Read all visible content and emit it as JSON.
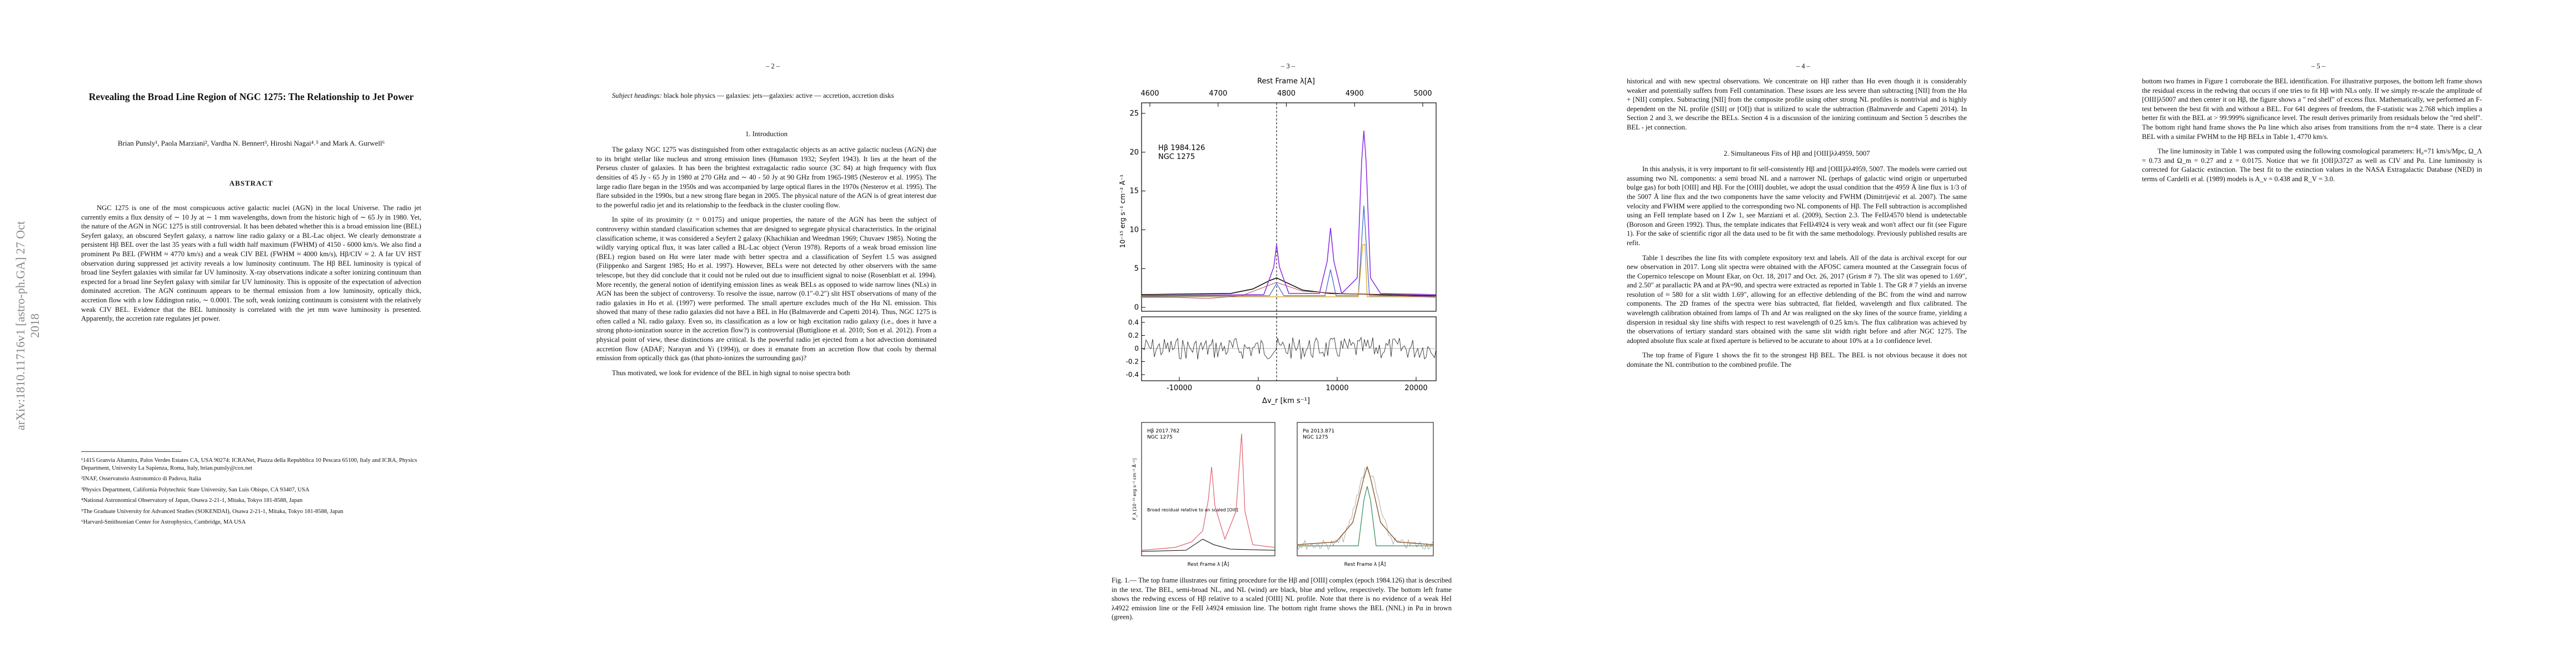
{
  "side_stamp": "arXiv:1810.11716v1  [astro-ph.GA]  27 Oct 2018",
  "page1": {
    "title": "Revealing the Broad Line Region of NGC 1275: The Relationship to Jet Power",
    "authors": "Brian Punsly¹, Paola Marziani², Vardha N. Bennert³, Hiroshi Nagai⁴˒⁵ and Mark A. Gurwell⁶",
    "abstract_heading": "ABSTRACT",
    "abstract": "NGC 1275 is one of the most conspicuous active galactic nuclei (AGN) in the local Universe. The radio jet currently emits a flux density of ∼ 10 Jy at ∼ 1 mm wavelengths, down from the historic high of ∼ 65 Jy in 1980. Yet, the nature of the AGN in NGC 1275 is still controversial. It has been debated whether this is a broad emission line (BEL) Seyfert galaxy, an obscured Seyfert galaxy, a narrow line radio galaxy or a BL-Lac object. We clearly demonstrate a persistent Hβ BEL over the last 35 years with a full width half maximum (FWHM) of 4150 - 6000 km/s. We also find a prominent Pα BEL (FWHM ≈ 4770 km/s) and a weak CIV BEL (FWHM ≈ 4000 km/s), Hβ/CIV ≈ 2. A far UV HST observation during suppressed jet activity reveals a low luminosity continuum. The Hβ BEL luminosity is typical of broad line Seyfert galaxies with similar far UV luminosity. X-ray observations indicate a softer ionizing continuum than expected for a broad line Seyfert galaxy with similar far UV luminosity. This is opposite of the expectation of advection dominated accretion. The AGN continuum appears to be thermal emission from a low luminosity, optically thick, accretion flow with a low Eddington ratio, ∼ 0.0001. The soft, weak ionizing continuum is consistent with the relatively weak CIV BEL. Evidence that the BEL luminosity is correlated with the jet mm wave luminosity is presented. Apparently, the accretion rate regulates jet power.",
    "footnotes": [
      "¹1415 Granvia Altamira, Palos Verdes Estates CA, USA 90274: ICRANet, Piazza della Repubblica 10 Pescara 65100, Italy and ICRA, Physics Department, University La Sapienza, Roma, Italy, brian.punsly@cox.net",
      "²INAF, Osservatorio Astronomico di Padova, Italia",
      "³Physics Department, California Polytechnic State University, San Luis Obispo, CA 93407, USA",
      "⁴National Astronomical Observatory of Japan, Osawa 2-21-1, Mitaka, Tokyo 181-8588, Japan",
      "⁵The Graduate University for Advanced Studies (SOKENDAI), Osawa 2-21-1, Mitaka, Tokyo 181-8588, Japan",
      "⁶Harvard-Smithsonian Center for Astrophysics, Cambridge, MA USA"
    ]
  },
  "page2": {
    "page_number": "– 2 –",
    "subject_headings_label": "Subject headings:",
    "subject_headings": "black hole physics — galaxies: jets—galaxies: active — accretion, accretion disks",
    "section_heading": "1.   Introduction",
    "paragraphs": [
      "The galaxy NGC 1275 was distinguished from other extragalactic objects as an active galactic nucleus (AGN) due to its bright stellar like nucleus and strong emission lines (Humason 1932; Seyfert 1943). It lies at the heart of the Perseus cluster of galaxies. It has been the brightest extragalactic radio source (3C 84) at high frequency with flux densities of 45 Jy - 65 Jy in 1980 at 270 GHz and ∼ 40 - 50 Jy at 90 GHz from 1965-1985 (Nesterov et al. 1995). The large radio flare began in the 1950s and was accompanied by large optical flares in the 1970s (Nesterov et al. 1995). The flare subsided in the 1990s, but a new strong flare began in 2005. The physical nature of the AGN is of great interest due to the powerful radio jet and its relationship to the feedback in the cluster cooling flow.",
      "In spite of its proximity (z = 0.0175) and unique properties, the nature of the AGN has been the subject of controversy within standard classification schemes that are designed to segregate physical characteristics. In the original classification scheme, it was considered a Seyfert 2 galaxy (Khachikian and Weedman 1969; Chuvaev 1985). Noting the wildly varying optical flux, it was later called a BL-Lac object (Veron 1978). Reports of a weak broad emission line (BEL) region based on Hα were later made with better spectra and a classification of Seyfert 1.5 was assigned (Filippenko and Sargent 1985; Ho et al. 1997). However, BELs were not detected by other observers with the same telescope, but they did conclude that it could not be ruled out due to insufficient signal to noise (Rosenblatt et al. 1994). More recently, the general notion of identifying emission lines as weak BELs as opposed to wide narrow lines (NLs) in AGN has been the subject of controversy. To resolve the issue, narrow (0.1″-0.2″) slit HST observations of many of the radio galaxies in Ho et al. (1997) were performed. The small aperture excludes much of the Hα NL emission. This showed that many of these radio galaxies did not have a BEL in Hα (Balmaverde and Capetti 2014). Thus, NGC 1275 is often called a NL radio galaxy. Even so, its classification as a low or high excitation radio galaxy (i.e., does it have a strong photo-ionization source in the accretion flow?) is controversial (Buttiglione et al. 2010; Son et al. 2012). From a physical point of view, these distinctions are critical. Is the powerful radio jet ejected from a hot advection dominated accretion flow (ADAF; Narayan and Yi (1994)), or does it emanate from an accretion flow that cools by thermal emission from optically thick gas (that photo-ionizes the surrounding gas)?",
      "Thus motivated, we look for evidence of the BEL in high signal to noise spectra both"
    ]
  },
  "page3": {
    "page_number": "– 3 –",
    "figure": {
      "top_axis_label": "Rest Frame λ[Å]",
      "top_ticks": [
        4600,
        4700,
        4800,
        4900,
        5000
      ],
      "y_label": "10⁻¹⁵ erg s⁻¹ cm⁻² Å⁻¹",
      "y_ticks": [
        25,
        20,
        15,
        10,
        5,
        0
      ],
      "residual_ticks": [
        0.4,
        0.2,
        0,
        -0.2,
        -0.4
      ],
      "x_ticks": [
        -10000,
        0,
        10000,
        20000
      ],
      "x_label": "Δv_r  [km s⁻¹]",
      "annotation_line1": "Hβ 1984.126",
      "annotation_line2": "NGC 1275",
      "left_panel_label1": "Hβ 2017.762",
      "left_panel_label2": "NGC 1275",
      "left_panel_note": "Broad residual relative to an scaled [OIII]",
      "left_panel_x_label": "Rest Frame λ [Å]",
      "left_panel_y_label": "F_λ [10⁻¹⁵ erg s⁻¹ cm⁻² Å⁻¹]",
      "right_panel_label1": "Pα 2013.871",
      "right_panel_label2": "NGC 1275",
      "right_panel_x_label": "Rest Frame λ [Å]"
    },
    "caption": "Fig. 1.— The top frame illustrates our fitting procedure for the Hβ and [OIII] complex (epoch 1984.126) that is described in the text. The BEL, semi-broad NL, and NL (wind) are black, blue and yellow, respectively. The bottom left frame shows the redwing excess of Hβ relative to a scaled [OIII] NL profile. Note that there is no evidence of a weak HeI λ4922 emission line or the FeII λ4924 emission line. The bottom right frame shows the BEL (NNL) in Pα in brown (green)."
  },
  "page4": {
    "page_number": "– 4 –",
    "paragraph_continued": "historical and with new spectral observations. We concentrate on Hβ rather than Hα even though it is considerably weaker and potentially suffers from FeII contamination. These issues are less severe than subtracting [NII] from the Hα + [NII] complex. Subtracting [NII] from the composite profile using other strong NL profiles is nontrivial and is highly dependent on the NL profile ([SII] or [OI]) that is utilized to scale the subtraction (Balmaverde and Capetti 2014). In Section 2 and 3, we describe the BELs. Section 4 is a discussion of the ionizing continuum and Section 5 describes the BEL - jet connection.",
    "section_heading": "2.   Simultaneous Fits of Hβ and [OIII]λλ4959, 5007",
    "paragraphs": [
      "In this analysis, it is very important to fit self-consistently Hβ and [OIII]λλ4959, 5007. The models were carried out assuming two NL components: a semi broad NL and a narrower NL (perhaps of galactic wind origin or unperturbed bulge gas) for both [OIII] and Hβ. For the [OIII] doublet, we adopt the usual condition that the 4959 Å line flux is 1/3 of the 5007 Å line flux and the two components have the same velocity and FWHM (Dimitrijević et al. 2007). The same velocity and FWHM were applied to the corresponding two NL components of Hβ. The FeII subtraction is accomplished using an FeII template based on I Zw 1, see Marziani et al. (2009), Section 2.3. The FeIIλ4570 blend is undetectable (Boroson and Green 1992). Thus, the template indicates that FeIIλ4924 is very weak and won't affect our fit (see Figure 1). For the sake of scientific rigor all the data used to be fit with the same methodology. Previously published results are refit.",
      "Table 1 describes the line fits with complete expository text and labels. All of the data is archival except for our new observation in 2017. Long slit spectra were obtained with the AFOSC camera mounted at the Cassegrain focus of the Copernico telescope on Mount Ekar, on Oct. 18, 2017 and Oct. 26, 2017 (Grism # 7). The slit was opened to 1.69″, and 2.50″ at parallactic PA and at PA=90, and spectra were extracted as reported in Table 1. The GR # 7 yields an inverse resolution of ≈ 580 for a slit width 1.69″, allowing for an effective deblending of the BC from the wind and narrow components. The 2D frames of the spectra were bias subtracted, flat fielded, wavelength and flux calibrated. The wavelength calibration obtained from lamps of Th and Ar was realigned on the sky lines of the source frame, yielding a dispersion in residual sky line shifts with respect to rest wavelength of 0.25 km/s. The flux calibration was achieved by the observations of tertiary standard stars obtained with the same slit width right before and after NGC 1275. The adopted absolute flux scale at fixed aperture is believed to be accurate to about 10% at a 1σ confidence level.",
      "The top frame of Figure 1 shows the fit to the strongest Hβ BEL. The BEL is not obvious because it does not dominate the NL contribution to the combined profile. The"
    ]
  },
  "page5": {
    "page_number": "– 5 –",
    "paragraphs": [
      "bottom two frames in Figure 1 corroborate the BEL identification. For illustrative purposes, the bottom left frame shows the residual excess in the redwing that occurs if one tries to fit Hβ with NLs only. If we simply re-scale the amplitude of [OIII]λ5007 and then center it on Hβ, the figure shows a \" red shelf\" of excess flux. Mathematically, we performed an F-test between the best fit with and without a BEL. For 641 degrees of freedom, the F-statistic was 2.768 which implies a better fit with the BEL at > 99.999% significance level. The result derives primarily from residuals below the \"red shelf\". The bottom right hand frame shows the Pα line which also arises from transitions from the n=4 state. There is a clear BEL with a similar FWHM to the Hβ BELs in Table 1, 4770 km/s.",
      "The line luminosity in Table 1 was computed using the following cosmological parameters: H₀=71 km/s/Mpc, Ω_Λ = 0.73 and Ω_m = 0.27 and z = 0.0175. Notice that we fit [OII]λ3727 as well as CIV and Pα. Line luminosity is corrected for Galactic extinction. The best fit to the extinction values in the NASA Extragalactic Database (NED) in terms of Cardelli et al. (1989) models is A_v = 0.438 and R_V = 3.0."
    ]
  }
}
